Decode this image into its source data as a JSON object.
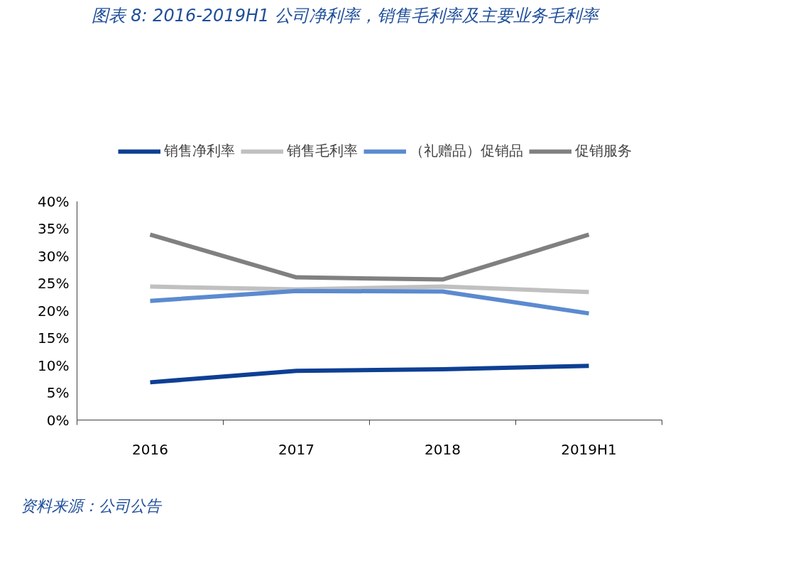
{
  "chart_data": {
    "type": "line",
    "title": "图表 8: 2016-2019H1 公司净利率，销售毛利率及主要业务毛利率",
    "annotations": [
      "资料来源：公司公告"
    ],
    "categories": [
      "2016",
      "2017",
      "2018",
      "2019H1"
    ],
    "series": [
      {
        "name": "销售净利率",
        "color": "#0d3f94",
        "values": [
          6.9,
          9.0,
          9.3,
          9.9
        ]
      },
      {
        "name": "销售毛利率",
        "color": "#c0c0c0",
        "values": [
          24.4,
          23.9,
          24.4,
          23.4
        ]
      },
      {
        "name": "（礼赠品）促销品",
        "color": "#5b8ad0",
        "values": [
          21.8,
          23.6,
          23.5,
          19.5
        ]
      },
      {
        "name": "促销服务",
        "color": "#808080",
        "values": [
          33.9,
          26.1,
          25.7,
          33.9
        ]
      }
    ],
    "ylim": [
      0,
      40
    ],
    "yticks": [
      {
        "value": 0,
        "label": "0%"
      },
      {
        "value": 5,
        "label": "5%"
      },
      {
        "value": 10,
        "label": "10%"
      },
      {
        "value": 15,
        "label": "15%"
      },
      {
        "value": 20,
        "label": "20%"
      },
      {
        "value": 25,
        "label": "25%"
      },
      {
        "value": 30,
        "label": "30%"
      },
      {
        "value": 35,
        "label": "35%"
      },
      {
        "value": 40,
        "label": "40%"
      }
    ],
    "grid": false,
    "legend": "top",
    "marker": "none",
    "line_style": "solid"
  }
}
